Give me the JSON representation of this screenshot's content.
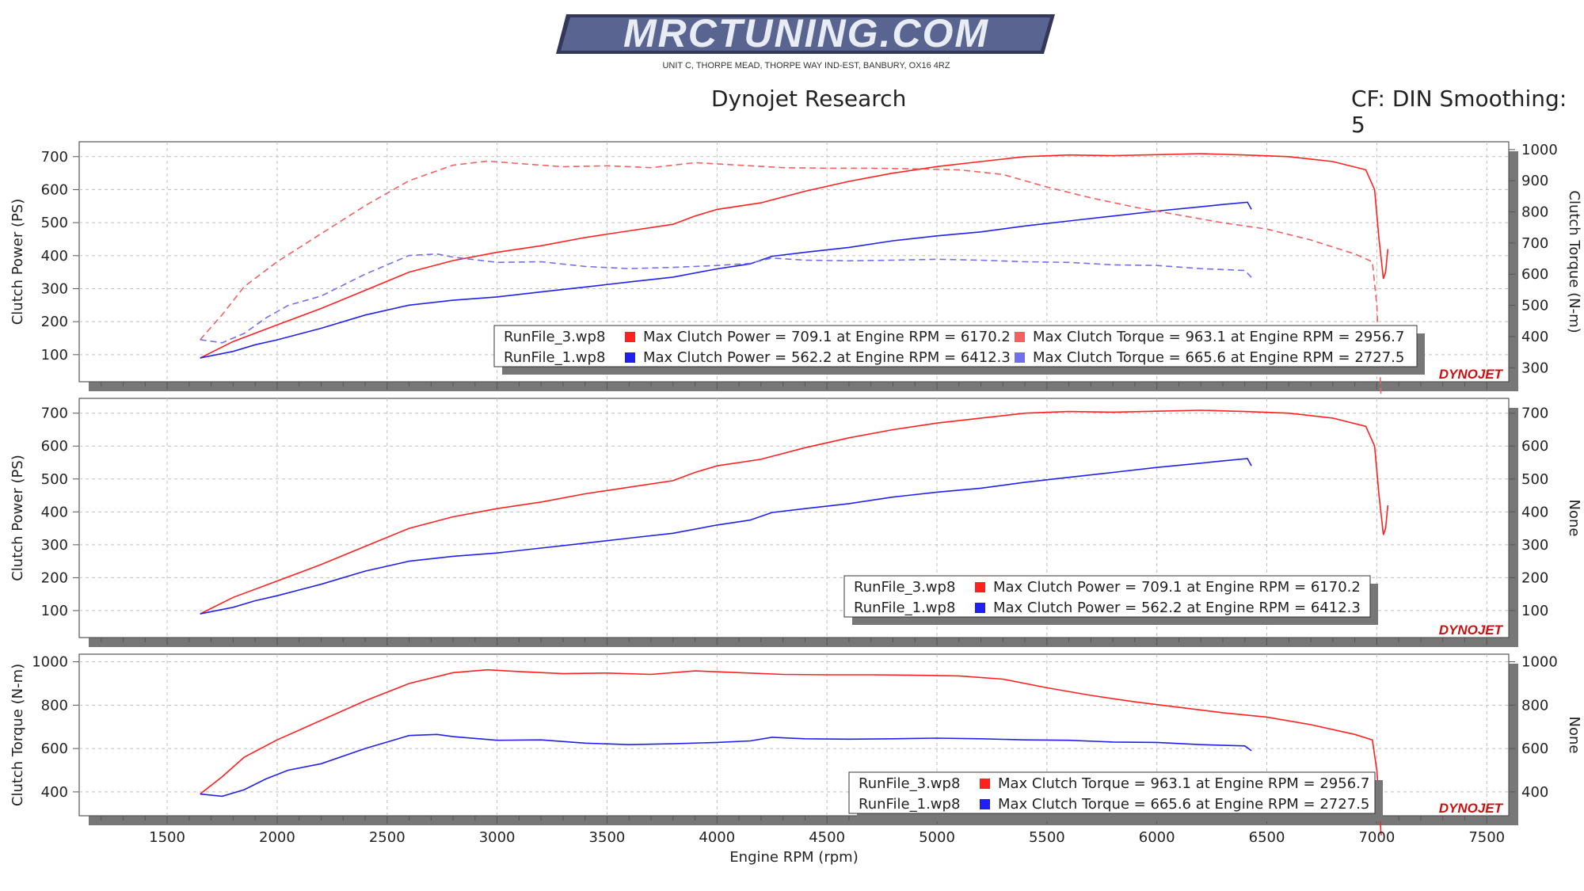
{
  "header": {
    "logo_text": "MRCTUNING.COM",
    "address": "UNIT C, THORPE MEAD, THORPE WAY IND-EST, BANBURY, OX16 4RZ",
    "title": "Dynojet Research",
    "cf_label": "CF: DIN Smoothing: 5"
  },
  "colors": {
    "run3_power": "#ff2020",
    "run1_power": "#2020ee",
    "run3_torque": "#f46060",
    "run1_torque": "#7070ee",
    "grid": "#bfbfbf",
    "shadow": "#777777"
  },
  "x_axis": {
    "label": "Engine RPM (rpm)",
    "ticks": [
      1500,
      2000,
      2500,
      3000,
      3500,
      4000,
      4500,
      5000,
      5500,
      6000,
      6500,
      7000,
      7500
    ]
  },
  "watermark": "DYNOJET",
  "panels": [
    {
      "name": "combined",
      "left_label": "Clutch Power (PS)",
      "right_label": "Clutch Torque (N-m)",
      "left_ticks": [
        100,
        200,
        300,
        400,
        500,
        600,
        700
      ],
      "right_ticks": [
        300,
        400,
        500,
        600,
        700,
        800,
        900,
        1000
      ],
      "legend": [
        {
          "file": "RunFile_3.wp8",
          "color": "#ff2020",
          "text": "Max Clutch Power = 709.1 at Engine RPM = 6170.2",
          "color2": "#f46060",
          "text2": "Max Clutch Torque = 963.1 at Engine RPM = 2956.7"
        },
        {
          "file": "RunFile_1.wp8",
          "color": "#2020ee",
          "text": "Max Clutch Power = 562.2 at Engine RPM = 6412.3",
          "color2": "#7070ee",
          "text2": "Max Clutch Torque = 665.6 at Engine RPM = 2727.5"
        }
      ]
    },
    {
      "name": "power",
      "left_label": "Clutch Power (PS)",
      "right_label": "None",
      "left_ticks": [
        100,
        200,
        300,
        400,
        500,
        600,
        700
      ],
      "right_ticks": [
        100,
        200,
        300,
        400,
        500,
        600,
        700
      ],
      "legend": [
        {
          "file": "RunFile_3.wp8",
          "color": "#ff2020",
          "text": "Max Clutch Power = 709.1 at Engine RPM = 6170.2"
        },
        {
          "file": "RunFile_1.wp8",
          "color": "#2020ee",
          "text": "Max Clutch Power = 562.2 at Engine RPM = 6412.3"
        }
      ]
    },
    {
      "name": "torque",
      "left_label": "Clutch Torque (N-m)",
      "right_label": "None",
      "left_ticks": [
        400,
        600,
        800,
        1000
      ],
      "right_ticks": [
        400,
        600,
        800,
        1000
      ],
      "legend": [
        {
          "file": "RunFile_3.wp8",
          "color": "#ff2020",
          "text": "Max Clutch Torque = 963.1 at Engine RPM = 2956.7"
        },
        {
          "file": "RunFile_1.wp8",
          "color": "#2020ee",
          "text": "Max Clutch Torque = 665.6 at Engine RPM = 2727.5"
        }
      ]
    }
  ],
  "chart_data": {
    "type": "line",
    "title": "Dynojet Research",
    "xlabel": "Engine RPM (rpm)",
    "xlim": [
      1100,
      7600
    ],
    "grid": true,
    "series": [
      {
        "name": "RunFile_3.wp8",
        "quantity": "Clutch Power (PS)",
        "x": [
          1650,
          1800,
          2000,
          2200,
          2400,
          2600,
          2800,
          3000,
          3200,
          3400,
          3600,
          3800,
          3900,
          4000,
          4200,
          4400,
          4600,
          4800,
          5000,
          5200,
          5400,
          5600,
          5800,
          6000,
          6200,
          6400,
          6600,
          6800,
          6950,
          6990,
          7010,
          7030,
          7040,
          7050
        ],
        "values": [
          90,
          140,
          190,
          240,
          295,
          350,
          385,
          410,
          430,
          455,
          475,
          495,
          520,
          540,
          560,
          595,
          625,
          650,
          670,
          685,
          700,
          705,
          703,
          706,
          709,
          705,
          700,
          685,
          660,
          600,
          450,
          330,
          350,
          420
        ]
      },
      {
        "name": "RunFile_1.wp8",
        "quantity": "Clutch Power (PS)",
        "x": [
          1650,
          1800,
          1900,
          2000,
          2200,
          2400,
          2600,
          2800,
          3000,
          3200,
          3400,
          3600,
          3800,
          4000,
          4150,
          4250,
          4400,
          4600,
          4800,
          5000,
          5200,
          5400,
          5600,
          5800,
          6000,
          6200,
          6300,
          6412,
          6430
        ],
        "values": [
          90,
          110,
          130,
          145,
          180,
          220,
          250,
          265,
          275,
          290,
          305,
          320,
          335,
          360,
          375,
          398,
          410,
          425,
          445,
          460,
          472,
          490,
          505,
          520,
          535,
          548,
          555,
          562,
          540
        ]
      },
      {
        "name": "RunFile_3.wp8",
        "quantity": "Clutch Torque (N-m)",
        "x": [
          1650,
          1750,
          1850,
          2000,
          2200,
          2400,
          2600,
          2800,
          2957,
          3100,
          3300,
          3500,
          3700,
          3900,
          4100,
          4300,
          4500,
          4700,
          4900,
          5100,
          5300,
          5500,
          5700,
          5900,
          6100,
          6300,
          6500,
          6700,
          6900,
          6980,
          7000,
          7020
        ],
        "values": [
          390,
          470,
          560,
          640,
          730,
          820,
          900,
          950,
          963,
          955,
          945,
          948,
          942,
          958,
          950,
          942,
          940,
          940,
          938,
          935,
          920,
          880,
          845,
          815,
          790,
          765,
          745,
          710,
          665,
          640,
          500,
          200
        ]
      },
      {
        "name": "RunFile_1.wp8",
        "quantity": "Clutch Torque (N-m)",
        "x": [
          1650,
          1750,
          1850,
          1950,
          2050,
          2200,
          2400,
          2600,
          2727,
          2800,
          3000,
          3200,
          3400,
          3600,
          3800,
          4000,
          4150,
          4250,
          4400,
          4600,
          4800,
          5000,
          5200,
          5400,
          5600,
          5800,
          6000,
          6200,
          6400,
          6430
        ],
        "values": [
          390,
          380,
          410,
          460,
          500,
          530,
          600,
          660,
          665,
          655,
          638,
          640,
          625,
          618,
          622,
          628,
          635,
          652,
          645,
          643,
          645,
          648,
          645,
          640,
          638,
          630,
          628,
          618,
          612,
          590
        ]
      }
    ]
  }
}
